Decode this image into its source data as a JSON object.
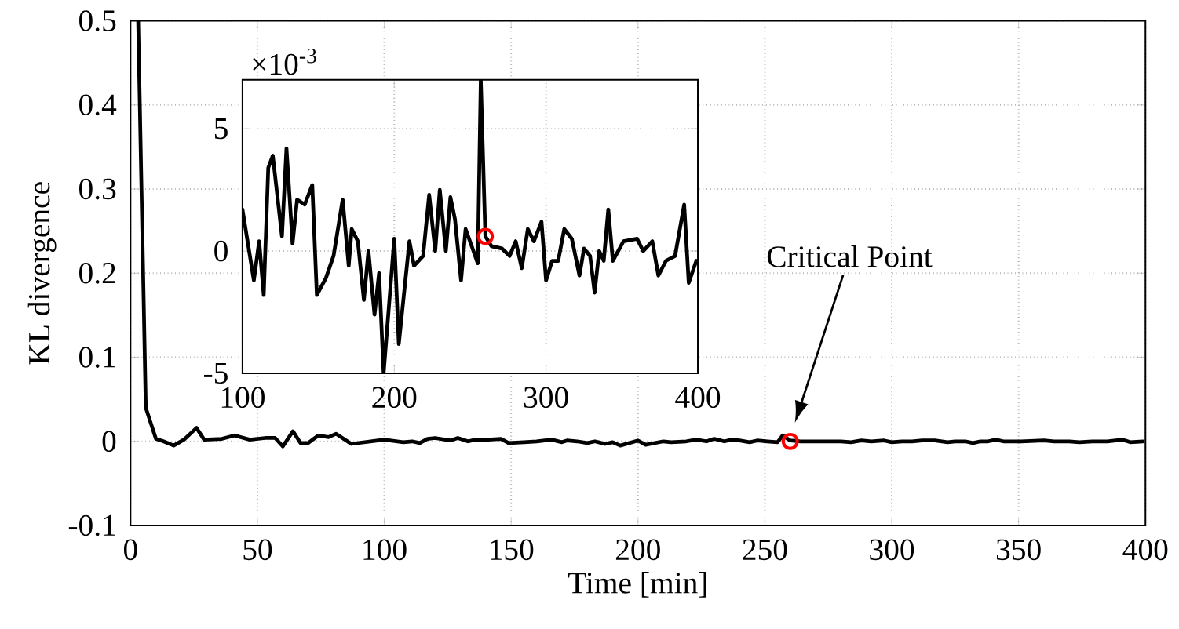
{
  "chart_data": [
    {
      "type": "line",
      "xlabel": "Time [min]",
      "ylabel": "KL divergence",
      "xlim": [
        0,
        400
      ],
      "ylim": [
        -0.1,
        0.5
      ],
      "xticks": [
        0,
        50,
        100,
        150,
        200,
        250,
        300,
        350,
        400
      ],
      "yticks": [
        -0.1,
        0,
        0.1,
        0.2,
        0.3,
        0.4,
        0.5
      ],
      "grid": true,
      "annotations": [
        "Critical Point"
      ],
      "series": [
        {
          "color": "#000000",
          "x": [
            3,
            6,
            10,
            13,
            17,
            21,
            26,
            29,
            36,
            41,
            47,
            53,
            57,
            60,
            64,
            67,
            70,
            74,
            78,
            81,
            87,
            100,
            107.5,
            111,
            114,
            117,
            120,
            126,
            129,
            133,
            136,
            141,
            146,
            149,
            155,
            160,
            166,
            170,
            172,
            176,
            180,
            183,
            187,
            190,
            193,
            200,
            203,
            210,
            213,
            219,
            223,
            227,
            230,
            234,
            237,
            240,
            244,
            247,
            251,
            255,
            257,
            260,
            264,
            271,
            276,
            280,
            284,
            288,
            292,
            297,
            300,
            304,
            308,
            312,
            317,
            322,
            325,
            329,
            332,
            335,
            338,
            341,
            344,
            351,
            360,
            364,
            370,
            374,
            379,
            385,
            391,
            394,
            399
          ],
          "values": [
            0.5,
            0.04,
            0.003,
            0,
            -0.005,
            0.002,
            0.016,
            0.002,
            0.003,
            0.007,
            0.002,
            0.004,
            0.004,
            -0.006,
            0.012,
            -0.002,
            -0.002,
            0.007,
            0.005,
            0.009,
            -0.003,
            0.002,
            -0.001,
            0,
            -0.002,
            0.003,
            0.004,
            0.001,
            0.004,
            0,
            0.002,
            0.002,
            0.003,
            -0.002,
            -0.001,
            0,
            0.002,
            -0.001,
            0.001,
            0,
            -0.002,
            0,
            -0.003,
            -0.001,
            -0.005,
            0.001,
            -0.004,
            0,
            -0.001,
            0,
            0.002,
            0,
            0.003,
            0,
            0.002,
            0.001,
            -0.001,
            0.001,
            0,
            -0.001,
            0.007,
            0.001,
            0,
            0,
            0,
            0,
            -0.001,
            0.001,
            0,
            0.001,
            -0.001,
            0,
            0,
            0.001,
            0.001,
            -0.001,
            0,
            0,
            -0.002,
            0,
            0,
            0.002,
            0,
            0,
            0.001,
            0,
            0,
            -0.001,
            0,
            0,
            0.002,
            -0.001,
            0
          ]
        },
        {
          "type": "scatter",
          "marker": "circle",
          "color": "#ff0000",
          "x": [
            260
          ],
          "values": [
            0
          ]
        }
      ]
    },
    {
      "type": "line",
      "xlim": [
        100,
        400
      ],
      "ylim": [
        -5,
        7
      ],
      "xticks": [
        100,
        200,
        300,
        400
      ],
      "yticks": [
        -5,
        0,
        5
      ],
      "grid": true,
      "annotations": [
        "×10$^{-3}$"
      ],
      "series": [
        {
          "color": "#000000",
          "x": [
            100,
            107.5,
            111,
            114,
            117,
            120,
            126,
            129,
            133,
            136,
            141,
            146,
            149,
            155,
            160,
            166,
            170,
            172,
            176,
            180,
            183,
            187,
            190,
            193,
            200,
            203,
            210,
            213,
            219,
            223,
            227,
            230,
            234,
            237,
            240,
            244,
            247,
            251,
            255,
            257,
            260,
            264,
            271,
            276,
            280,
            284,
            288,
            292,
            297,
            300,
            304,
            308,
            312,
            317,
            322,
            325,
            329,
            332,
            335,
            338,
            341,
            344,
            351,
            360,
            364,
            370,
            374,
            379,
            385,
            391,
            394,
            399
          ],
          "values": [
            1.7,
            -1.2,
            0.4,
            -1.8,
            3.4,
            3.9,
            0.6,
            4.2,
            0.3,
            2.1,
            1.9,
            2.7,
            -1.8,
            -1.1,
            -0.2,
            2.1,
            -0.6,
            0.9,
            0.4,
            -2.0,
            0,
            -2.6,
            -0.9,
            -5.0,
            0.5,
            -3.8,
            0.4,
            -0.6,
            -0.2,
            2.3,
            0,
            2.5,
            0,
            2.2,
            1.3,
            -1.2,
            0.9,
            0.2,
            -0.5,
            7.0,
            0.6,
            0.2,
            0.1,
            -0.2,
            0.4,
            -0.7,
            0.9,
            0.4,
            1.2,
            -1.2,
            -0.4,
            -0.4,
            0.9,
            0.5,
            -1.0,
            0.1,
            -0.2,
            -1.7,
            0,
            -0.4,
            1.7,
            -0.4,
            0.4,
            0.5,
            0,
            0.4,
            -1.0,
            -0.4,
            -0.2,
            1.9,
            -1.3,
            -0.4
          ]
        },
        {
          "type": "scatter",
          "marker": "circle",
          "color": "#ff0000",
          "x": [
            260
          ],
          "values": [
            0.6
          ]
        }
      ]
    }
  ]
}
